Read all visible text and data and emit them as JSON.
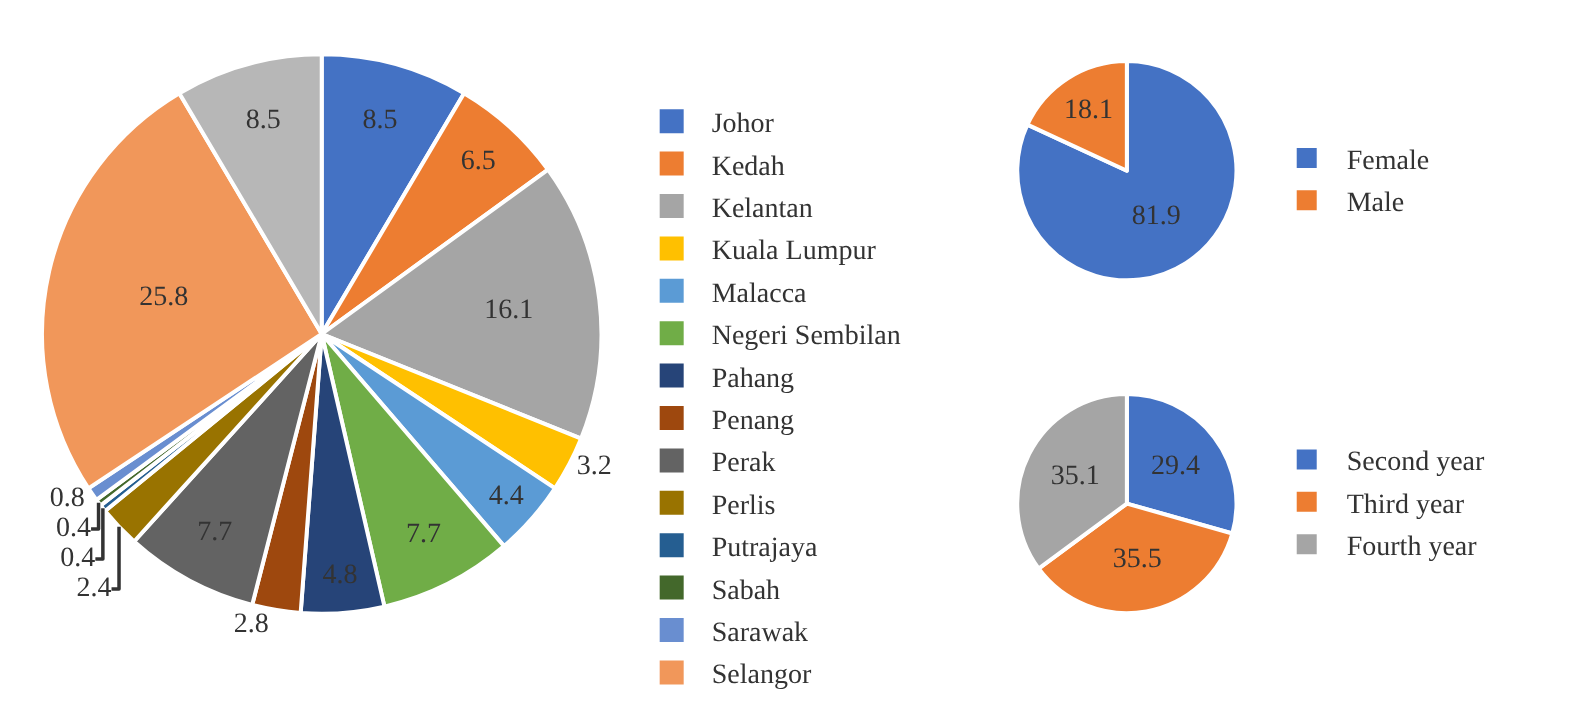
{
  "chart_data": [
    {
      "type": "pie",
      "categories": [
        "Johor",
        "Kedah",
        "Kelantan",
        "Kuala Lumpur",
        "Malacca",
        "Negeri Sembilan",
        "Pahang",
        "Penang",
        "Perak",
        "Perlis",
        "Putrajaya",
        "Sabah",
        "Sarawak",
        "Selangor",
        null
      ],
      "values": [
        8.5,
        6.5,
        16.1,
        3.2,
        4.4,
        7.7,
        4.8,
        2.8,
        7.7,
        2.4,
        0.4,
        0.4,
        0.8,
        25.8,
        8.5
      ],
      "colors": [
        "#4472c4",
        "#ed7d31",
        "#a5a5a5",
        "#ffc000",
        "#5b9bd5",
        "#70ad47",
        "#264478",
        "#9e480e",
        "#636363",
        "#997300",
        "#255e91",
        "#43682b",
        "#698ed0",
        "#f1975a",
        "#b7b7b7"
      ],
      "data_labels": true,
      "legend": "right"
    },
    {
      "type": "pie",
      "categories": [
        "Female",
        "Male"
      ],
      "values": [
        81.9,
        18.1
      ],
      "colors": [
        "#4472c4",
        "#ed7d31"
      ],
      "data_labels": true,
      "legend": "right"
    },
    {
      "type": "pie",
      "categories": [
        "Second year",
        "Third year",
        "Fourth year"
      ],
      "values": [
        29.4,
        35.5,
        35.1
      ],
      "colors": [
        "#4472c4",
        "#ed7d31",
        "#a5a5a5"
      ],
      "data_labels": true,
      "legend": "right"
    }
  ]
}
